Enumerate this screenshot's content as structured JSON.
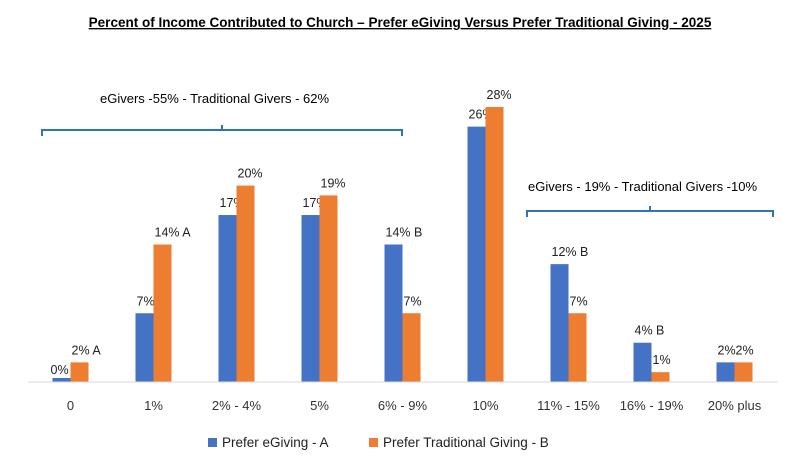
{
  "chart_data": {
    "type": "bar",
    "title": "Percent of Income Contributed to Church – Prefer eGiving Versus Prefer Traditional Giving - 2025",
    "categories": [
      "0",
      "1%",
      "2% - 4%",
      "5%",
      "6% - 9%",
      "10%",
      "11% - 15%",
      "16% - 19%",
      "20% plus"
    ],
    "series": [
      {
        "name": "Prefer eGiving - A",
        "color": "#4472C4",
        "values": [
          0,
          7,
          17,
          17,
          14,
          26,
          12,
          4,
          2
        ],
        "labels": [
          "0%",
          "7%",
          "17%",
          "17%",
          "14% B",
          "26%",
          "12%  B",
          "4% B",
          "2%"
        ]
      },
      {
        "name": "Prefer Traditional Giving - B",
        "color": "#ED7D31",
        "values": [
          2,
          14,
          20,
          19,
          7,
          28,
          7,
          1,
          2
        ],
        "labels": [
          "2% A",
          "14% A",
          "20%",
          "19%",
          "7%",
          "28%",
          "7%",
          "1%",
          "2%"
        ]
      }
    ],
    "ylim": [
      0,
      30
    ],
    "grid": false,
    "legend": "bottom",
    "annotations": [
      {
        "text": "eGivers -55% - Traditional Givers - 62%",
        "from_category": 0,
        "to_category": 4
      },
      {
        "text": "eGivers - 19% - Traditional Givers -10%",
        "from_category": 6,
        "to_category": 8
      }
    ],
    "bracket_color": "#2E75B6"
  }
}
